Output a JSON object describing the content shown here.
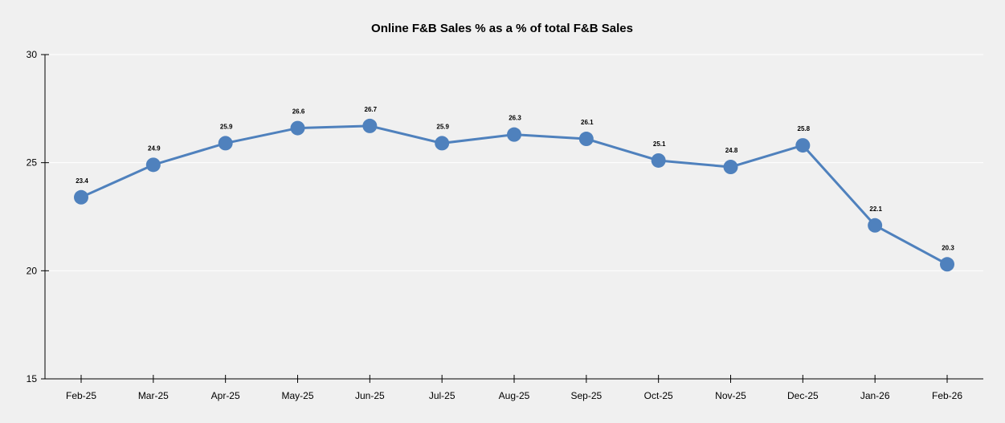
{
  "chart_data": {
    "type": "line",
    "title": "Online F&B Sales % as a % of total F&B Sales",
    "xlabel": "",
    "ylabel": "",
    "categories": [
      "Feb-25",
      "Mar-25",
      "Apr-25",
      "May-25",
      "Jun-25",
      "Jul-25",
      "Aug-25",
      "Sep-25",
      "Oct-25",
      "Nov-25",
      "Dec-25",
      "Jan-26",
      "Feb-26"
    ],
    "series": [
      {
        "name": "Online F&B Sales %",
        "values": [
          23.4,
          24.9,
          25.9,
          26.6,
          26.7,
          25.9,
          26.3,
          26.1,
          25.1,
          24.8,
          25.8,
          22.1,
          20.3
        ],
        "color": "#4f81bd"
      }
    ],
    "ylim": [
      15,
      30
    ],
    "yticks": [
      15,
      20,
      25,
      30
    ],
    "grid": true,
    "legend": "none",
    "data_labels": true
  }
}
